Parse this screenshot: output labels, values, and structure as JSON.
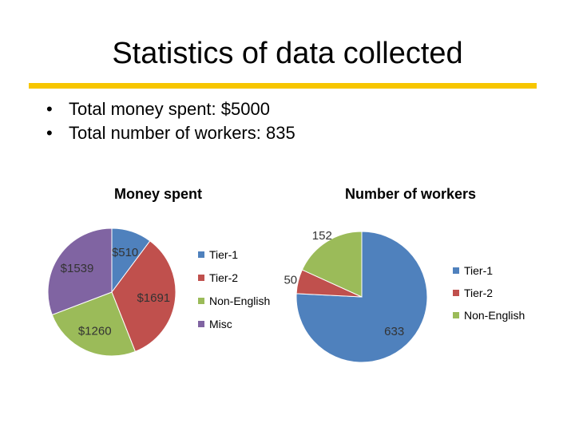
{
  "slide": {
    "title": "Statistics of data collected",
    "accent_color": "#f7c600",
    "bullets": [
      "Total money spent: $5000",
      "Total number of workers: 835"
    ]
  },
  "chart_data": [
    {
      "type": "pie",
      "title": "Money spent",
      "categories": [
        "Tier-1",
        "Tier-2",
        "Non-English",
        "Misc"
      ],
      "values": [
        510,
        1691,
        1260,
        1539
      ],
      "data_labels": [
        "$510",
        "$1691",
        "$1260",
        "$1539"
      ],
      "colors": [
        "#4f81bd",
        "#c0504d",
        "#9bbb59",
        "#8064a2"
      ],
      "legend": "right"
    },
    {
      "type": "pie",
      "title": "Number of workers",
      "categories": [
        "Tier-1",
        "Tier-2",
        "Non-English"
      ],
      "values": [
        633,
        50,
        152
      ],
      "data_labels": [
        "633",
        "50",
        "152"
      ],
      "colors": [
        "#4f81bd",
        "#c0504d",
        "#9bbb59"
      ],
      "legend": "right"
    }
  ]
}
